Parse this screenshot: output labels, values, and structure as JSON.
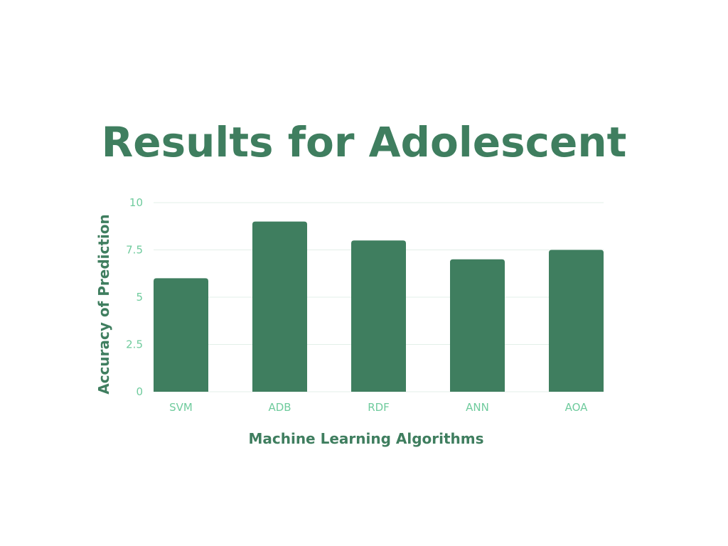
{
  "chart_data": {
    "type": "bar",
    "title": "Results for Adolescent",
    "xlabel": "Machine Learning Algorithms",
    "ylabel": "Accuracy of Prediction",
    "categories": [
      "SVM",
      "ADB",
      "RDF",
      "ANN",
      "AOA"
    ],
    "values": [
      6,
      9,
      8,
      7,
      7.5
    ],
    "ylim": [
      0,
      10
    ],
    "yticks": [
      "0",
      "2.5",
      "5",
      "7.5",
      "10"
    ],
    "grid": true,
    "legend": "none",
    "colors": {
      "bar": "#3f7e5f",
      "title": "#3f7e5f",
      "tick_labels": "#6fcb9d",
      "gridlines": "#e3efe9"
    }
  }
}
